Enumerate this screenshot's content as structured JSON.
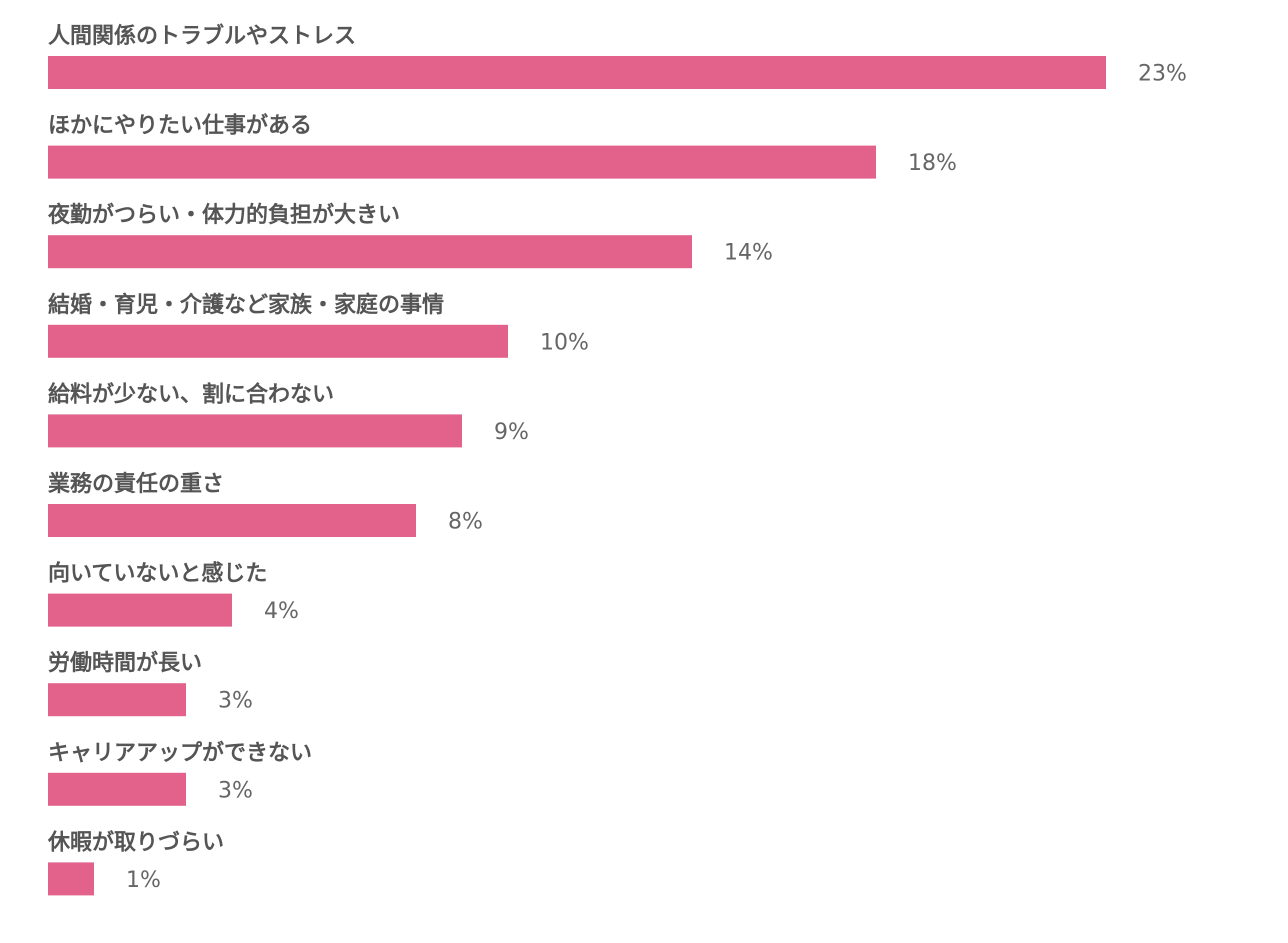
{
  "chart_data": {
    "type": "bar",
    "orientation": "horizontal",
    "categories": [
      "人間関係のトラブルやストレス",
      "ほかにやりたい仕事がある",
      "夜勤がつらい・体力的負担が大きい",
      "結婚・育児・介護など家族・家庭の事情",
      "給料が少ない、割に合わない",
      "業務の責任の重さ",
      "向いていないと感じた",
      "労働時間が長い",
      "キャリアアップができない",
      "休暇が取りづらい"
    ],
    "values": [
      23,
      18,
      14,
      10,
      9,
      8,
      4,
      3,
      3,
      1
    ],
    "value_labels": [
      "23%",
      "18%",
      "14%",
      "10%",
      "9%",
      "8%",
      "4%",
      "3%",
      "3%",
      "1%"
    ],
    "unit": "%",
    "xlim": [
      0,
      23
    ],
    "grid": false,
    "legend": "none",
    "colors": {
      "bar": "#e2628c",
      "category_text": "#555555",
      "value_text": "#666666"
    }
  }
}
